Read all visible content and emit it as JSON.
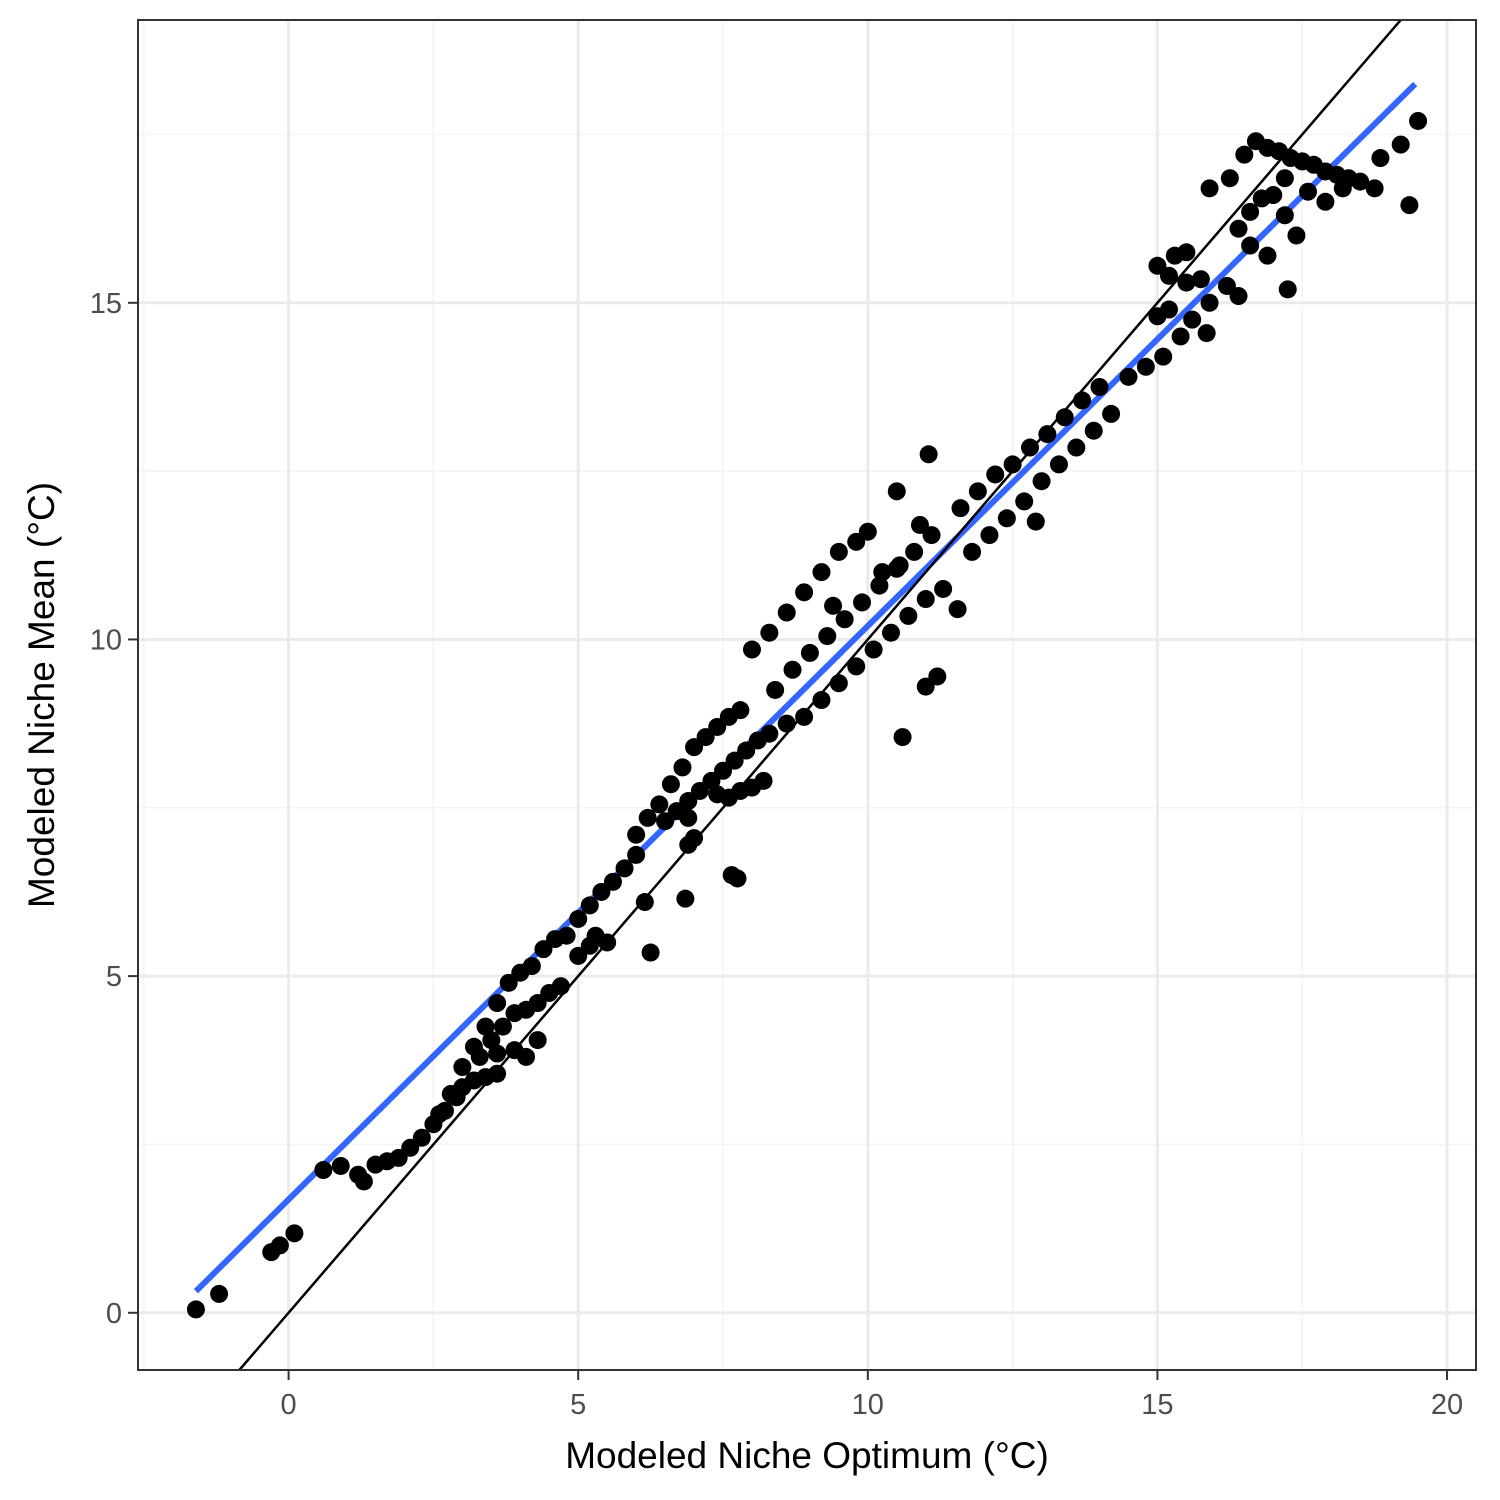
{
  "chart_data": {
    "type": "scatter",
    "xlabel": "Modeled Niche Optimum (°C)",
    "ylabel": "Modeled Niche Mean (°C)",
    "xlim": [
      -2.6,
      20.5
    ],
    "ylim": [
      -0.85,
      19.2
    ],
    "x_ticks": [
      0,
      5,
      10,
      15,
      20
    ],
    "y_ticks": [
      0,
      5,
      10,
      15
    ],
    "x_tick_labels": [
      "0",
      "5",
      "10",
      "15",
      "20"
    ],
    "y_tick_labels": [
      "0",
      "5",
      "10",
      "15"
    ],
    "grid": true,
    "theme": "bw",
    "colors": {
      "points": "#000000",
      "fit_line": "#3366ff",
      "identity_line": "#000000",
      "grid_major": "#ebebeb",
      "grid_minor": "#f3f3f3",
      "panel_border": "#333333"
    },
    "series": [
      {
        "kind": "points",
        "points": [
          [
            -1.6,
            0.05
          ],
          [
            -1.2,
            0.28
          ],
          [
            -0.3,
            0.9
          ],
          [
            -0.15,
            1.0
          ],
          [
            0.1,
            1.18
          ],
          [
            0.6,
            2.12
          ],
          [
            0.9,
            2.18
          ],
          [
            1.2,
            2.05
          ],
          [
            1.3,
            1.95
          ],
          [
            1.5,
            2.2
          ],
          [
            1.7,
            2.25
          ],
          [
            1.9,
            2.3
          ],
          [
            2.1,
            2.45
          ],
          [
            2.3,
            2.6
          ],
          [
            2.5,
            2.8
          ],
          [
            2.7,
            3.0
          ],
          [
            2.9,
            3.2
          ],
          [
            3.0,
            3.35
          ],
          [
            3.2,
            3.45
          ],
          [
            3.4,
            3.5
          ],
          [
            3.6,
            3.55
          ],
          [
            2.6,
            2.95
          ],
          [
            2.8,
            3.25
          ],
          [
            3.0,
            3.65
          ],
          [
            3.2,
            3.95
          ],
          [
            3.4,
            4.25
          ],
          [
            3.6,
            4.6
          ],
          [
            3.8,
            4.9
          ],
          [
            4.0,
            5.05
          ],
          [
            4.2,
            5.15
          ],
          [
            4.4,
            5.4
          ],
          [
            4.6,
            5.55
          ],
          [
            3.5,
            4.05
          ],
          [
            3.7,
            4.25
          ],
          [
            3.9,
            4.45
          ],
          [
            4.1,
            4.5
          ],
          [
            4.3,
            4.6
          ],
          [
            4.5,
            4.75
          ],
          [
            4.7,
            4.85
          ],
          [
            3.3,
            3.8
          ],
          [
            3.6,
            3.85
          ],
          [
            3.9,
            3.9
          ],
          [
            4.1,
            3.8
          ],
          [
            4.3,
            4.05
          ],
          [
            4.8,
            5.6
          ],
          [
            5.0,
            5.85
          ],
          [
            5.2,
            6.05
          ],
          [
            5.4,
            6.25
          ],
          [
            5.6,
            6.4
          ],
          [
            5.8,
            6.6
          ],
          [
            6.0,
            6.8
          ],
          [
            5.3,
            5.6
          ],
          [
            5.5,
            5.5
          ],
          [
            5.0,
            5.3
          ],
          [
            5.2,
            5.45
          ],
          [
            6.0,
            7.1
          ],
          [
            6.2,
            7.35
          ],
          [
            6.4,
            7.55
          ],
          [
            6.6,
            7.85
          ],
          [
            6.8,
            8.1
          ],
          [
            7.0,
            8.4
          ],
          [
            7.2,
            8.55
          ],
          [
            7.4,
            8.7
          ],
          [
            7.6,
            8.85
          ],
          [
            7.8,
            8.95
          ],
          [
            6.5,
            7.3
          ],
          [
            6.7,
            7.45
          ],
          [
            6.9,
            7.6
          ],
          [
            7.1,
            7.75
          ],
          [
            7.3,
            7.9
          ],
          [
            7.5,
            8.05
          ],
          [
            7.7,
            8.2
          ],
          [
            7.9,
            8.35
          ],
          [
            8.1,
            8.5
          ],
          [
            8.3,
            8.6
          ],
          [
            7.4,
            7.7
          ],
          [
            7.6,
            7.65
          ],
          [
            7.8,
            7.75
          ],
          [
            8.0,
            7.8
          ],
          [
            8.2,
            7.9
          ],
          [
            6.9,
            7.35
          ],
          [
            7.0,
            7.05
          ],
          [
            6.9,
            6.95
          ],
          [
            7.65,
            6.5
          ],
          [
            7.75,
            6.45
          ],
          [
            6.15,
            6.1
          ],
          [
            6.85,
            6.15
          ],
          [
            6.25,
            5.35
          ],
          [
            8.0,
            9.85
          ],
          [
            8.3,
            10.1
          ],
          [
            8.6,
            10.4
          ],
          [
            8.9,
            10.7
          ],
          [
            9.2,
            11.0
          ],
          [
            9.5,
            11.3
          ],
          [
            9.8,
            11.45
          ],
          [
            8.4,
            9.25
          ],
          [
            8.7,
            9.55
          ],
          [
            9.0,
            9.8
          ],
          [
            9.3,
            10.05
          ],
          [
            9.6,
            10.3
          ],
          [
            9.9,
            10.55
          ],
          [
            10.2,
            10.8
          ],
          [
            10.5,
            11.05
          ],
          [
            10.8,
            11.3
          ],
          [
            11.1,
            11.55
          ],
          [
            8.6,
            8.75
          ],
          [
            8.9,
            8.85
          ],
          [
            9.2,
            9.1
          ],
          [
            9.5,
            9.35
          ],
          [
            9.8,
            9.6
          ],
          [
            10.1,
            9.85
          ],
          [
            10.4,
            10.1
          ],
          [
            10.7,
            10.35
          ],
          [
            11.0,
            10.6
          ],
          [
            11.3,
            10.75
          ],
          [
            11.55,
            10.45
          ],
          [
            11.6,
            11.95
          ],
          [
            11.9,
            12.2
          ],
          [
            12.2,
            12.45
          ],
          [
            12.5,
            12.6
          ],
          [
            12.8,
            12.85
          ],
          [
            13.1,
            13.05
          ],
          [
            13.4,
            13.3
          ],
          [
            13.7,
            13.55
          ],
          [
            14.0,
            13.75
          ],
          [
            11.8,
            11.3
          ],
          [
            12.1,
            11.55
          ],
          [
            12.4,
            11.8
          ],
          [
            12.7,
            12.05
          ],
          [
            13.0,
            12.35
          ],
          [
            13.3,
            12.6
          ],
          [
            13.6,
            12.85
          ],
          [
            13.9,
            13.1
          ],
          [
            14.2,
            13.35
          ],
          [
            12.9,
            11.75
          ],
          [
            10.55,
            11.1
          ],
          [
            10.25,
            11.0
          ],
          [
            10.0,
            11.6
          ],
          [
            10.9,
            11.7
          ],
          [
            9.4,
            10.5
          ],
          [
            11.0,
            9.3
          ],
          [
            11.2,
            9.45
          ],
          [
            10.6,
            8.55
          ],
          [
            11.05,
            12.75
          ],
          [
            10.5,
            12.2
          ],
          [
            14.5,
            13.9
          ],
          [
            14.8,
            14.05
          ],
          [
            15.1,
            14.2
          ],
          [
            15.4,
            14.5
          ],
          [
            15.6,
            14.75
          ],
          [
            15.9,
            15.0
          ],
          [
            15.2,
            14.9
          ],
          [
            15.5,
            15.3
          ],
          [
            15.85,
            14.55
          ],
          [
            15.0,
            14.8
          ],
          [
            15.3,
            15.7
          ],
          [
            15.5,
            15.75
          ],
          [
            15.0,
            15.55
          ],
          [
            15.2,
            15.4
          ],
          [
            16.2,
            15.25
          ],
          [
            16.4,
            15.1
          ],
          [
            15.75,
            15.35
          ],
          [
            15.9,
            16.7
          ],
          [
            16.25,
            16.85
          ],
          [
            16.4,
            16.1
          ],
          [
            16.6,
            16.35
          ],
          [
            16.8,
            16.55
          ],
          [
            17.0,
            16.6
          ],
          [
            17.2,
            16.3
          ],
          [
            17.4,
            16.0
          ],
          [
            16.5,
            17.2
          ],
          [
            16.7,
            17.4
          ],
          [
            16.9,
            17.3
          ],
          [
            17.1,
            17.25
          ],
          [
            17.3,
            17.15
          ],
          [
            17.5,
            17.1
          ],
          [
            17.7,
            17.05
          ],
          [
            17.9,
            16.95
          ],
          [
            18.1,
            16.9
          ],
          [
            18.3,
            16.85
          ],
          [
            18.5,
            16.8
          ],
          [
            17.2,
            16.85
          ],
          [
            17.6,
            16.65
          ],
          [
            17.9,
            16.5
          ],
          [
            18.2,
            16.7
          ],
          [
            16.6,
            15.85
          ],
          [
            16.9,
            15.7
          ],
          [
            17.25,
            15.2
          ],
          [
            18.75,
            16.7
          ],
          [
            18.85,
            17.15
          ],
          [
            19.2,
            17.35
          ],
          [
            19.35,
            16.45
          ],
          [
            19.5,
            17.7
          ]
        ]
      },
      {
        "kind": "line",
        "name": "",
        "points": [
          [
            -1.6,
            0.32
          ],
          [
            19.45,
            18.25
          ]
        ]
      },
      {
        "kind": "line",
        "name": "",
        "points": [
          [
            -0.85,
            -0.85
          ],
          [
            19.2,
            19.2
          ]
        ]
      }
    ]
  }
}
